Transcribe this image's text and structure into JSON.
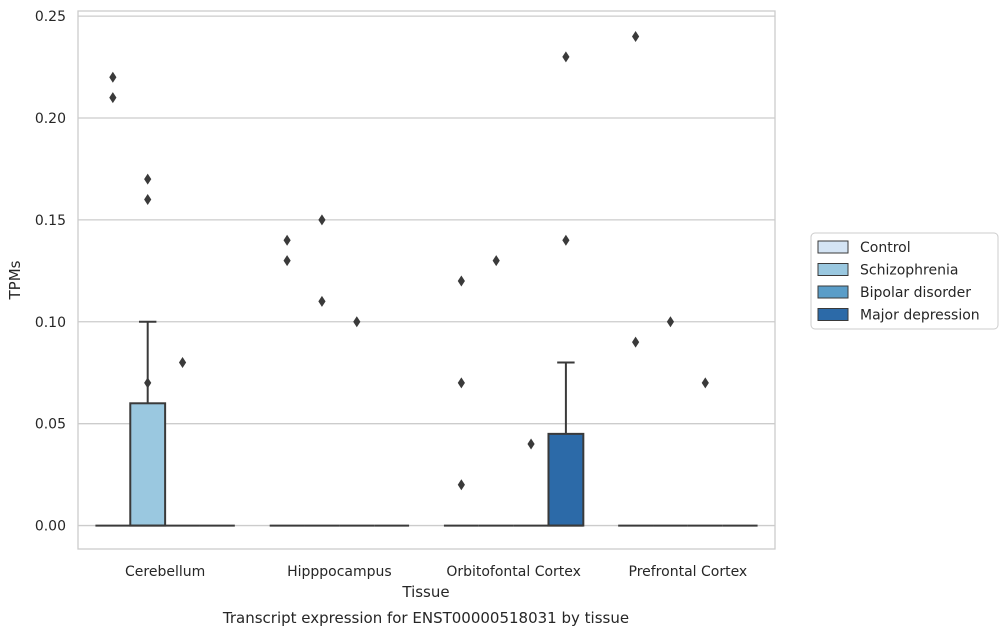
{
  "chart_data": {
    "type": "box",
    "title": "Transcript expression for ENST00000518031 by tissue",
    "xlabel": "Tissue",
    "ylabel": "TPMs",
    "ylim": [
      -0.0115,
      0.2525
    ],
    "yticks": [
      0.0,
      0.05,
      0.1,
      0.15,
      0.2,
      0.25
    ],
    "ytick_labels": [
      "0.00",
      "0.05",
      "0.10",
      "0.15",
      "0.20",
      "0.25"
    ],
    "grid": true,
    "legend_position": "right",
    "categories": [
      "Cerebellum",
      "Hipppocampus",
      "Orbitofontal Cortex",
      "Prefrontal Cortex"
    ],
    "series": [
      {
        "name": "Control",
        "color": "#d4e4f4",
        "boxes": [
          {
            "q1": 0,
            "median": 0,
            "q3": 0,
            "whisker_low": 0,
            "whisker_high": 0,
            "outliers": [
              0.22,
              0.21
            ]
          },
          {
            "q1": 0,
            "median": 0,
            "q3": 0,
            "whisker_low": 0,
            "whisker_high": 0,
            "outliers": [
              0.14,
              0.13
            ]
          },
          {
            "q1": 0,
            "median": 0,
            "q3": 0,
            "whisker_low": 0,
            "whisker_high": 0,
            "outliers": [
              0.12,
              0.07,
              0.02
            ]
          },
          {
            "q1": 0,
            "median": 0,
            "q3": 0,
            "whisker_low": 0,
            "whisker_high": 0,
            "outliers": [
              0.24,
              0.09
            ]
          }
        ]
      },
      {
        "name": "Schizophrenia",
        "color": "#9ac8e0",
        "boxes": [
          {
            "q1": 0,
            "median": 0,
            "q3": 0.06,
            "whisker_low": 0,
            "whisker_high": 0.1,
            "outliers": [
              0.17,
              0.16,
              0.07
            ]
          },
          {
            "q1": 0,
            "median": 0,
            "q3": 0,
            "whisker_low": 0,
            "whisker_high": 0,
            "outliers": [
              0.15,
              0.11
            ]
          },
          {
            "q1": 0,
            "median": 0,
            "q3": 0,
            "whisker_low": 0,
            "whisker_high": 0,
            "outliers": [
              0.13
            ]
          },
          {
            "q1": 0,
            "median": 0,
            "q3": 0,
            "whisker_low": 0,
            "whisker_high": 0,
            "outliers": [
              0.1
            ]
          }
        ]
      },
      {
        "name": "Bipolar disorder",
        "color": "#5a9dc8",
        "boxes": [
          {
            "q1": 0,
            "median": 0,
            "q3": 0,
            "whisker_low": 0,
            "whisker_high": 0,
            "outliers": [
              0.08
            ]
          },
          {
            "q1": 0,
            "median": 0,
            "q3": 0,
            "whisker_low": 0,
            "whisker_high": 0,
            "outliers": [
              0.1
            ]
          },
          {
            "q1": 0,
            "median": 0,
            "q3": 0,
            "whisker_low": 0,
            "whisker_high": 0,
            "outliers": [
              0.04
            ]
          },
          {
            "q1": 0,
            "median": 0,
            "q3": 0,
            "whisker_low": 0,
            "whisker_high": 0,
            "outliers": [
              0.07
            ]
          }
        ]
      },
      {
        "name": "Major depression",
        "color": "#2c6aa8",
        "boxes": [
          {
            "q1": 0,
            "median": 0,
            "q3": 0,
            "whisker_low": 0,
            "whisker_high": 0,
            "outliers": []
          },
          {
            "q1": 0,
            "median": 0,
            "q3": 0,
            "whisker_low": 0,
            "whisker_high": 0,
            "outliers": []
          },
          {
            "q1": 0,
            "median": 0,
            "q3": 0.045,
            "whisker_low": 0,
            "whisker_high": 0.08,
            "outliers": [
              0.23,
              0.14
            ]
          },
          {
            "q1": 0,
            "median": 0,
            "q3": 0,
            "whisker_low": 0,
            "whisker_high": 0,
            "outliers": []
          }
        ]
      }
    ]
  }
}
